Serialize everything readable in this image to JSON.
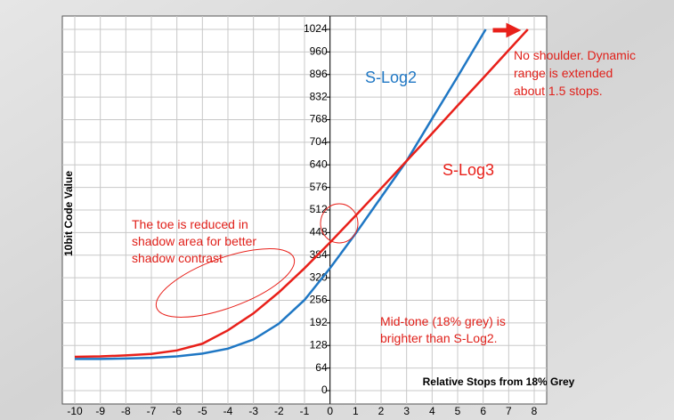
{
  "chart_data": {
    "type": "line",
    "y_label": "10bit Code Value",
    "x_label": "Relative Stops from 18% Grey",
    "xlim": [
      -10,
      8
    ],
    "xticks": [
      -10,
      -9,
      -8,
      -7,
      -6,
      -5,
      -4,
      -3,
      -2,
      -1,
      0,
      1,
      2,
      3,
      4,
      5,
      6,
      7,
      8
    ],
    "ylim": [
      0,
      1024
    ],
    "yticks": [
      0,
      64,
      128,
      192,
      256,
      320,
      384,
      448,
      512,
      576,
      640,
      704,
      768,
      832,
      896,
      960,
      1024
    ],
    "grid": true,
    "series": [
      {
        "name": "S-Log2",
        "color": "#1f77c4",
        "x": [
          -10,
          -9,
          -8,
          -7,
          -6,
          -5,
          -4,
          -3,
          -2,
          -1,
          0,
          1,
          2,
          3,
          4,
          5,
          6,
          6.1
        ],
        "values": [
          90,
          90,
          91,
          93,
          97,
          105,
          119,
          145,
          190,
          257,
          347,
          445,
          548,
          651,
          771,
          890,
          1012,
          1024
        ]
      },
      {
        "name": "S-Log3",
        "color": "#e8201a",
        "x": [
          -10,
          -9,
          -8,
          -7,
          -6,
          -5,
          -4,
          -3,
          -2,
          -1,
          0,
          1,
          2,
          3,
          4,
          5,
          6,
          7,
          7.75
        ],
        "values": [
          96,
          97,
          100,
          104,
          114,
          133,
          171,
          219,
          279,
          347,
          420,
          496,
          573,
          651,
          729,
          808,
          886,
          965,
          1024
        ]
      }
    ],
    "annotations": [
      {
        "lines": [
          "No shoulder. Dynamic",
          "range is extended",
          "about 1.5 stops."
        ]
      },
      {
        "lines": [
          "The toe is reduced in",
          "shadow area for better",
          "shadow contrast"
        ]
      },
      {
        "lines": [
          "Mid-tone (18% grey) is",
          "brighter than S-Log2."
        ]
      }
    ]
  }
}
